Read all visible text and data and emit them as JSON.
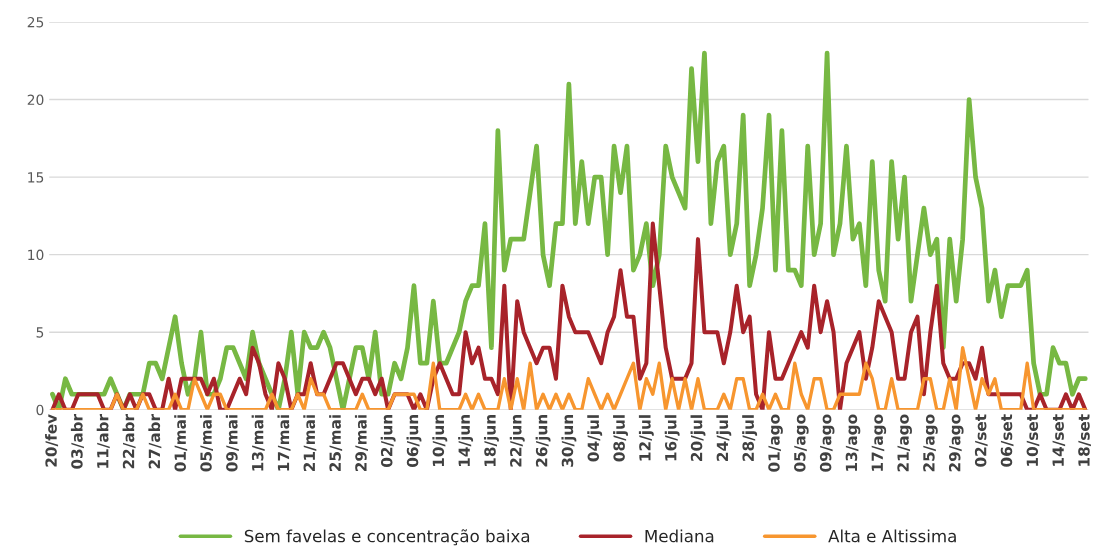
{
  "chart_data": {
    "type": "line",
    "categories": [
      "20/fev",
      null,
      null,
      null,
      "03/abr",
      null,
      null,
      null,
      "11/abr",
      null,
      null,
      null,
      "22/abr",
      null,
      null,
      null,
      "27/abr",
      null,
      null,
      null,
      "01/mai",
      null,
      null,
      null,
      "05/mai",
      null,
      null,
      null,
      "09/mai",
      null,
      null,
      null,
      "13/mai",
      null,
      null,
      null,
      "17/mai",
      null,
      null,
      null,
      "21/mai",
      null,
      null,
      null,
      "25/mai",
      null,
      null,
      null,
      "29/mai",
      null,
      null,
      null,
      "02/jun",
      null,
      null,
      null,
      "06/jun",
      null,
      null,
      null,
      "10/jun",
      null,
      null,
      null,
      "14/jun",
      null,
      null,
      null,
      "18/jun",
      null,
      null,
      null,
      "22/jun",
      null,
      null,
      null,
      "26/jun",
      null,
      null,
      null,
      "30/jun",
      null,
      null,
      null,
      "04/jul",
      null,
      null,
      null,
      "08/jul",
      null,
      null,
      null,
      "12/jul",
      null,
      null,
      null,
      "16/jul",
      null,
      null,
      null,
      "20/jul",
      null,
      null,
      null,
      "24/jul",
      null,
      null,
      null,
      "28/jul",
      null,
      null,
      null,
      "01/ago",
      null,
      null,
      null,
      "05/ago",
      null,
      null,
      null,
      "09/ago",
      null,
      null,
      null,
      "13/ago",
      null,
      null,
      null,
      "17/ago",
      null,
      null,
      null,
      "21/ago",
      null,
      null,
      null,
      "25/ago",
      null,
      null,
      null,
      "29/ago",
      null,
      null,
      null,
      "02/set",
      null,
      null,
      null,
      "06/set",
      null,
      null,
      null,
      "10/set",
      null,
      null,
      null,
      "14/set",
      null,
      null,
      null,
      "18/set"
    ],
    "series": [
      {
        "name": "Sem favelas e concentração baixa",
        "color": "#77b843",
        "values": [
          1,
          0,
          2,
          1,
          1,
          1,
          1,
          1,
          1,
          2,
          1,
          0,
          1,
          1,
          1,
          3,
          3,
          2,
          4,
          6,
          3,
          1,
          2,
          5,
          1,
          1,
          2,
          4,
          4,
          3,
          2,
          5,
          3,
          2,
          1,
          0,
          2,
          5,
          1,
          5,
          4,
          4,
          5,
          4,
          2,
          0,
          2,
          4,
          4,
          2,
          5,
          1,
          1,
          3,
          2,
          4,
          8,
          3,
          3,
          7,
          3,
          3,
          4,
          5,
          7,
          8,
          8,
          12,
          4,
          18,
          9,
          11,
          11,
          11,
          14,
          17,
          10,
          8,
          12,
          12,
          21,
          12,
          16,
          12,
          15,
          15,
          10,
          17,
          14,
          17,
          9,
          10,
          12,
          8,
          10,
          17,
          15,
          14,
          13,
          22,
          16,
          23,
          12,
          16,
          17,
          10,
          12,
          19,
          8,
          10,
          13,
          19,
          9,
          18,
          9,
          9,
          8,
          17,
          10,
          12,
          23,
          10,
          12,
          17,
          11,
          12,
          8,
          16,
          9,
          7,
          16,
          11,
          15,
          7,
          10,
          13,
          10,
          11,
          4,
          11,
          7,
          11,
          20,
          15,
          13,
          7,
          9,
          6,
          8,
          8,
          8,
          9,
          3,
          1,
          1,
          4,
          3,
          3,
          1,
          2,
          2
        ]
      },
      {
        "name": "Mediana",
        "color": "#a8232a",
        "values": [
          0,
          1,
          0,
          0,
          1,
          1,
          1,
          1,
          0,
          0,
          1,
          0,
          1,
          0,
          1,
          1,
          0,
          0,
          2,
          0,
          2,
          2,
          2,
          2,
          1,
          2,
          0,
          0,
          1,
          2,
          1,
          4,
          3,
          1,
          0,
          3,
          2,
          0,
          1,
          1,
          3,
          1,
          1,
          2,
          3,
          3,
          2,
          1,
          2,
          2,
          1,
          2,
          0,
          1,
          1,
          1,
          0,
          1,
          0,
          2,
          3,
          2,
          1,
          1,
          5,
          3,
          4,
          2,
          2,
          1,
          8,
          0,
          7,
          5,
          4,
          3,
          4,
          4,
          2,
          8,
          6,
          5,
          5,
          5,
          4,
          3,
          5,
          6,
          9,
          6,
          6,
          2,
          3,
          12,
          8,
          4,
          2,
          2,
          2,
          3,
          11,
          5,
          5,
          5,
          3,
          5,
          8,
          5,
          6,
          1,
          0,
          5,
          2,
          2,
          3,
          4,
          5,
          4,
          8,
          5,
          7,
          5,
          0,
          3,
          4,
          5,
          2,
          4,
          7,
          6,
          5,
          2,
          2,
          5,
          6,
          1,
          5,
          8,
          3,
          2,
          2,
          3,
          3,
          2,
          4,
          1,
          1,
          1,
          1,
          1,
          1,
          0,
          0,
          1,
          0,
          0,
          0,
          1,
          0,
          1,
          0
        ]
      },
      {
        "name": "Alta e Altissima",
        "color": "#f7962f",
        "values": [
          0,
          0,
          0,
          0,
          0,
          0,
          0,
          0,
          0,
          0,
          1,
          0,
          0,
          0,
          1,
          0,
          0,
          0,
          0,
          1,
          0,
          0,
          2,
          1,
          0,
          1,
          1,
          0,
          0,
          0,
          0,
          0,
          0,
          0,
          1,
          0,
          0,
          0,
          1,
          0,
          2,
          1,
          1,
          0,
          0,
          0,
          0,
          0,
          1,
          0,
          0,
          0,
          0,
          1,
          1,
          1,
          1,
          0,
          0,
          3,
          0,
          0,
          0,
          0,
          1,
          0,
          1,
          0,
          0,
          0,
          2,
          0,
          2,
          0,
          3,
          0,
          1,
          0,
          1,
          0,
          1,
          0,
          0,
          2,
          1,
          0,
          1,
          0,
          1,
          2,
          3,
          0,
          2,
          1,
          3,
          0,
          2,
          0,
          2,
          0,
          2,
          0,
          0,
          0,
          1,
          0,
          2,
          2,
          0,
          0,
          1,
          0,
          1,
          0,
          0,
          3,
          1,
          0,
          2,
          2,
          0,
          0,
          1,
          1,
          1,
          1,
          3,
          2,
          0,
          0,
          2,
          0,
          0,
          0,
          0,
          2,
          2,
          0,
          0,
          2,
          0,
          4,
          2,
          0,
          2,
          1,
          2,
          0,
          0,
          0,
          0,
          3,
          0,
          0,
          0,
          0,
          0,
          0,
          0,
          0,
          0
        ]
      }
    ],
    "ylim": [
      0,
      25
    ],
    "yticks": [
      0,
      5,
      10,
      15,
      20,
      25
    ],
    "grid": "y",
    "legend": "bottom"
  }
}
